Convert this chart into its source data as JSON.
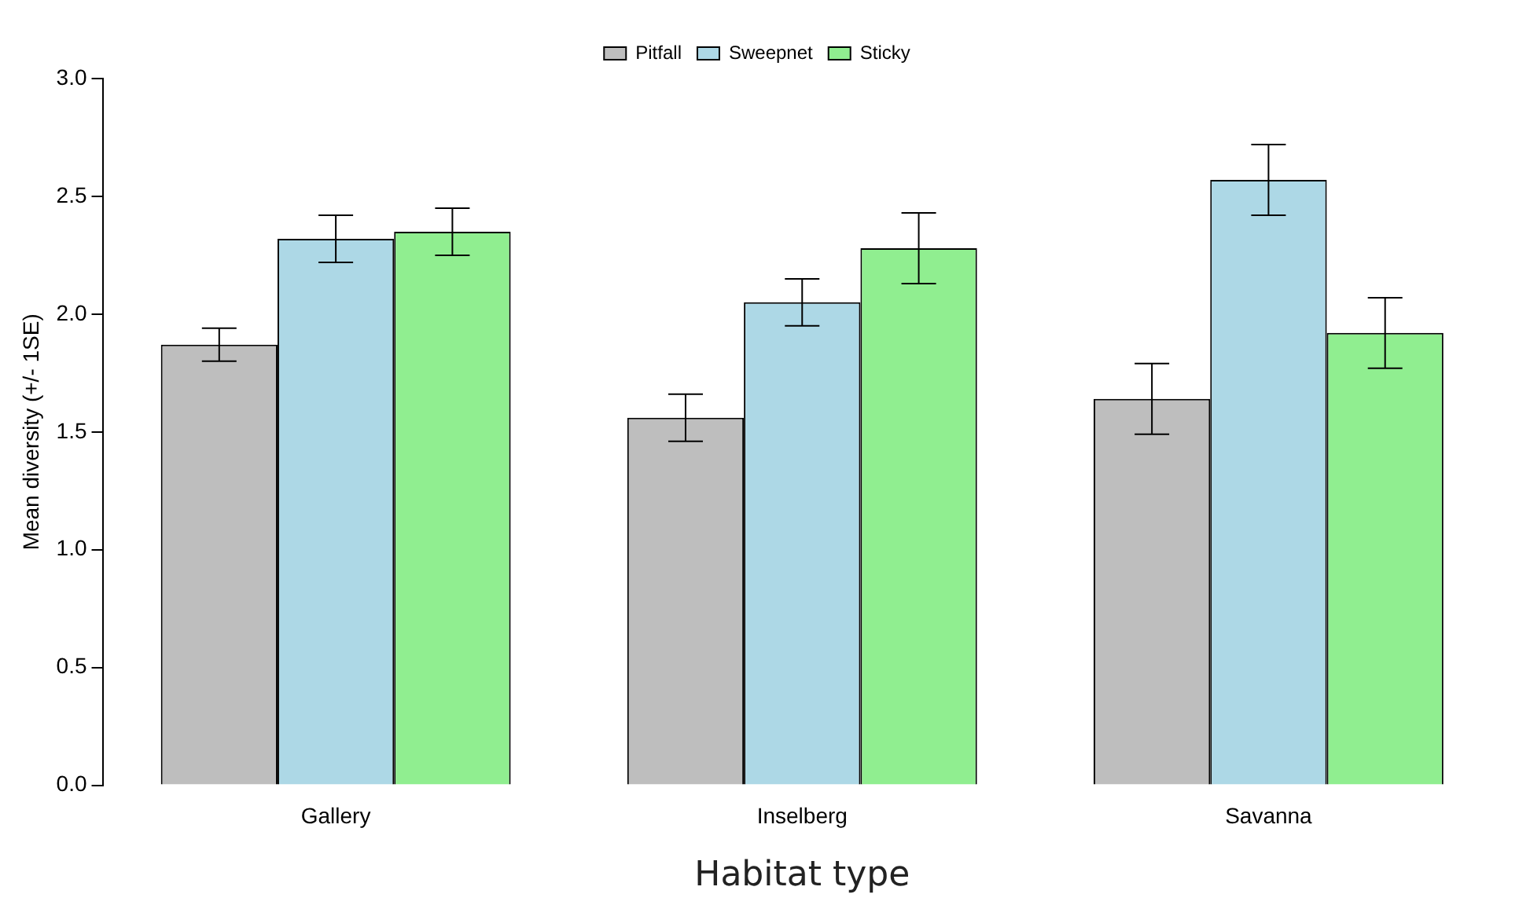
{
  "chart_data": {
    "type": "bar",
    "xlabel": "Habitat type",
    "ylabel": "Mean diversity (+/- 1SE)",
    "categories": [
      "Gallery",
      "Inselberg",
      "Savanna"
    ],
    "series": [
      {
        "name": "Pitfall",
        "color": "#bebebe",
        "values": [
          1.87,
          1.56,
          1.64
        ],
        "errors": [
          0.07,
          0.1,
          0.15
        ]
      },
      {
        "name": "Sweepnet",
        "color": "#add8e6",
        "values": [
          2.32,
          2.05,
          2.57
        ],
        "errors": [
          0.1,
          0.1,
          0.15
        ]
      },
      {
        "name": "Sticky",
        "color": "#90ee90",
        "values": [
          2.35,
          2.28,
          1.92
        ],
        "errors": [
          0.1,
          0.15,
          0.15
        ]
      }
    ],
    "ylim": [
      0,
      3
    ],
    "yticks": [
      {
        "value": 0,
        "label": "0.0"
      },
      {
        "value": 0.5,
        "label": "0.5"
      },
      {
        "value": 1,
        "label": "1.0"
      },
      {
        "value": 1.5,
        "label": "1.5"
      },
      {
        "value": 2,
        "label": "2.0"
      },
      {
        "value": 2.5,
        "label": "2.5"
      },
      {
        "value": 3,
        "label": "3.0"
      }
    ],
    "grid": false,
    "legend": "top"
  }
}
